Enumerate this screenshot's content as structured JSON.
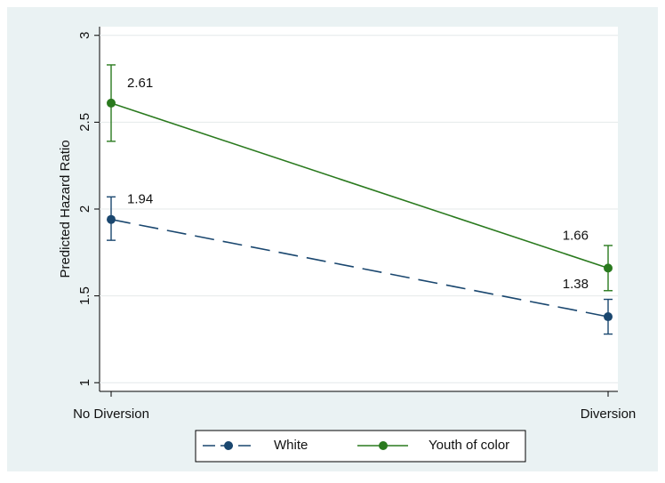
{
  "chart_data": {
    "type": "line",
    "y_label": "Predicted Hazard Ratio",
    "categories": [
      "No Diversion",
      "Diversion"
    ],
    "series": [
      {
        "name": "White",
        "color": "#1a476f",
        "dash": "dashed",
        "values": [
          1.94,
          1.38
        ],
        "ci_low": [
          1.82,
          1.28
        ],
        "ci_high": [
          2.07,
          1.48
        ]
      },
      {
        "name": "Youth of color",
        "color": "#2a7a1e",
        "dash": "solid",
        "values": [
          2.61,
          1.66
        ],
        "ci_low": [
          2.39,
          1.53
        ],
        "ci_high": [
          2.83,
          1.79
        ]
      }
    ],
    "ylim": [
      0.95,
      3.05
    ],
    "yticks": [
      1,
      1.5,
      2,
      2.5,
      3
    ],
    "grid": true,
    "legend": "bottom"
  }
}
